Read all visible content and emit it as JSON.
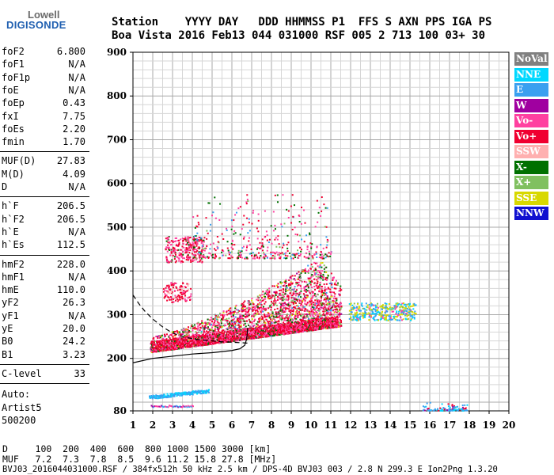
{
  "logo": {
    "top": "Lowell",
    "bottom": "DIGISONDE"
  },
  "header": {
    "line1": "Station    YYYY DAY   DDD HHMMSS P1  FFS S AXN PPS IGA PS",
    "line2": "Boa Vista 2016 Feb13 044 031000 RSF 005 2 713 100 03+ 30"
  },
  "params": {
    "g1": [
      {
        "label": "foF2",
        "value": "6.800"
      },
      {
        "label": "foF1",
        "value": "N/A"
      },
      {
        "label": "foF1p",
        "value": "N/A"
      },
      {
        "label": "foE",
        "value": "N/A"
      },
      {
        "label": "foEp",
        "value": "0.43"
      },
      {
        "label": "fxI",
        "value": "7.75"
      },
      {
        "label": "foEs",
        "value": "2.20"
      },
      {
        "label": "fmin",
        "value": "1.70"
      }
    ],
    "g2": [
      {
        "label": "MUF(D)",
        "value": "27.83"
      },
      {
        "label": "M(D)",
        "value": "4.09"
      },
      {
        "label": "D",
        "value": "N/A"
      }
    ],
    "g3": [
      {
        "label": "h`F",
        "value": "206.5"
      },
      {
        "label": "h`F2",
        "value": "206.5"
      },
      {
        "label": "h`E",
        "value": "N/A"
      },
      {
        "label": "h`Es",
        "value": "112.5"
      }
    ],
    "g4": [
      {
        "label": "hmF2",
        "value": "228.0"
      },
      {
        "label": "hmF1",
        "value": "N/A"
      },
      {
        "label": "hmE",
        "value": "110.0"
      },
      {
        "label": "yF2",
        "value": "26.3"
      },
      {
        "label": "yF1",
        "value": "N/A"
      },
      {
        "label": "yE",
        "value": "20.0"
      },
      {
        "label": "B0",
        "value": "24.2"
      },
      {
        "label": "B1",
        "value": "3.23"
      }
    ],
    "c_level": {
      "label": "C-level",
      "value": "33"
    },
    "auto": [
      "Auto:",
      "Artist5",
      "500200"
    ]
  },
  "legend": [
    {
      "label": "NoVal",
      "bg": "#808080",
      "fg": "#ffffff"
    },
    {
      "label": "NNE",
      "bg": "#00d8ff",
      "fg": "#ffffff"
    },
    {
      "label": "E",
      "bg": "#3aa0f0",
      "fg": "#ffffff"
    },
    {
      "label": "W",
      "bg": "#a000a0",
      "fg": "#ffffff"
    },
    {
      "label": "Vo-",
      "bg": "#ff40a0",
      "fg": "#ffffff"
    },
    {
      "label": "Vo+",
      "bg": "#f00030",
      "fg": "#ffffff"
    },
    {
      "label": "SSW",
      "bg": "#ffb0b0",
      "fg": "#ffffff"
    },
    {
      "label": "X-",
      "bg": "#007000",
      "fg": "#ffffff"
    },
    {
      "label": "X+",
      "bg": "#80c060",
      "fg": "#ffffff"
    },
    {
      "label": "SSE",
      "bg": "#d8d800",
      "fg": "#ffffff"
    },
    {
      "label": "NNW",
      "bg": "#1010d0",
      "fg": "#ffffff"
    }
  ],
  "footer": {
    "line1": "D     100  200  400  600  800 1000 1500 3000 [km]",
    "line2": "MUF   7.2  7.3  7.8  8.5  9.6 11.2 15.8 27.8 [MHz]",
    "line3": "BVJ03_2016044031000.RSF / 384fx512h 50 kHz 2.5 km / DPS-4D BVJ03 003 / 2.8 N 299.3 E Ion2Png 1.3.20"
  },
  "chart_data": {
    "type": "scatter",
    "xlim": [
      1,
      20
    ],
    "ylim": [
      80,
      900
    ],
    "x_ticks": [
      1,
      2,
      3,
      4,
      5,
      6,
      7,
      8,
      9,
      10,
      11,
      12,
      13,
      14,
      15,
      16,
      17,
      18,
      19,
      20
    ],
    "y_ticks": [
      80,
      200,
      300,
      400,
      500,
      600,
      700,
      800,
      900
    ],
    "grid": true,
    "traces": [
      {
        "name": "bottomside profile",
        "style": "solid",
        "color": "#000000",
        "x": [
          1.0,
          2.0,
          3.0,
          4.0,
          5.0,
          6.0,
          6.4,
          6.65,
          6.75,
          6.8
        ],
        "y": [
          190,
          200,
          205,
          210,
          213,
          218,
          222,
          230,
          245,
          270
        ]
      },
      {
        "name": "topside profile",
        "style": "dashed",
        "color": "#000000",
        "x": [
          1.0,
          1.3,
          1.6,
          2.0,
          2.5,
          3.0,
          3.5,
          4.0,
          4.5,
          5.0,
          5.5,
          6.0,
          6.4,
          6.8
        ],
        "y": [
          345,
          325,
          308,
          290,
          272,
          258,
          250,
          245,
          242,
          240,
          238,
          237,
          236,
          235
        ]
      }
    ],
    "echo_regions": [
      {
        "trace": "F2 O/X trace",
        "x_range": [
          1.8,
          11.5
        ],
        "y_low_start": 215,
        "y_low_end": 275,
        "y_high_start": 250,
        "y_high_end": 430,
        "colors": [
          "Vo+",
          "Vo-",
          "X-",
          "X+",
          "SSE",
          "E"
        ]
      },
      {
        "trace": "F2 second hop",
        "x_range": [
          2.5,
          4.6
        ],
        "y_range": [
          420,
          480
        ],
        "colors": [
          "Vo+",
          "Vo-"
        ]
      },
      {
        "trace": "sporadic E",
        "x_range": [
          1.8,
          4.8
        ],
        "y_range": [
          100,
          125
        ],
        "colors": [
          "E",
          "NNE"
        ]
      },
      {
        "trace": "oblique echoes",
        "x_range": [
          11.8,
          15.3
        ],
        "y_range": [
          285,
          330
        ],
        "colors": [
          "SSE",
          "E",
          "NNE"
        ]
      },
      {
        "trace": "low echoes",
        "x_range": [
          15.6,
          17.9
        ],
        "y_range": [
          82,
          110
        ],
        "colors": [
          "E",
          "W",
          "Vo+"
        ]
      }
    ]
  }
}
